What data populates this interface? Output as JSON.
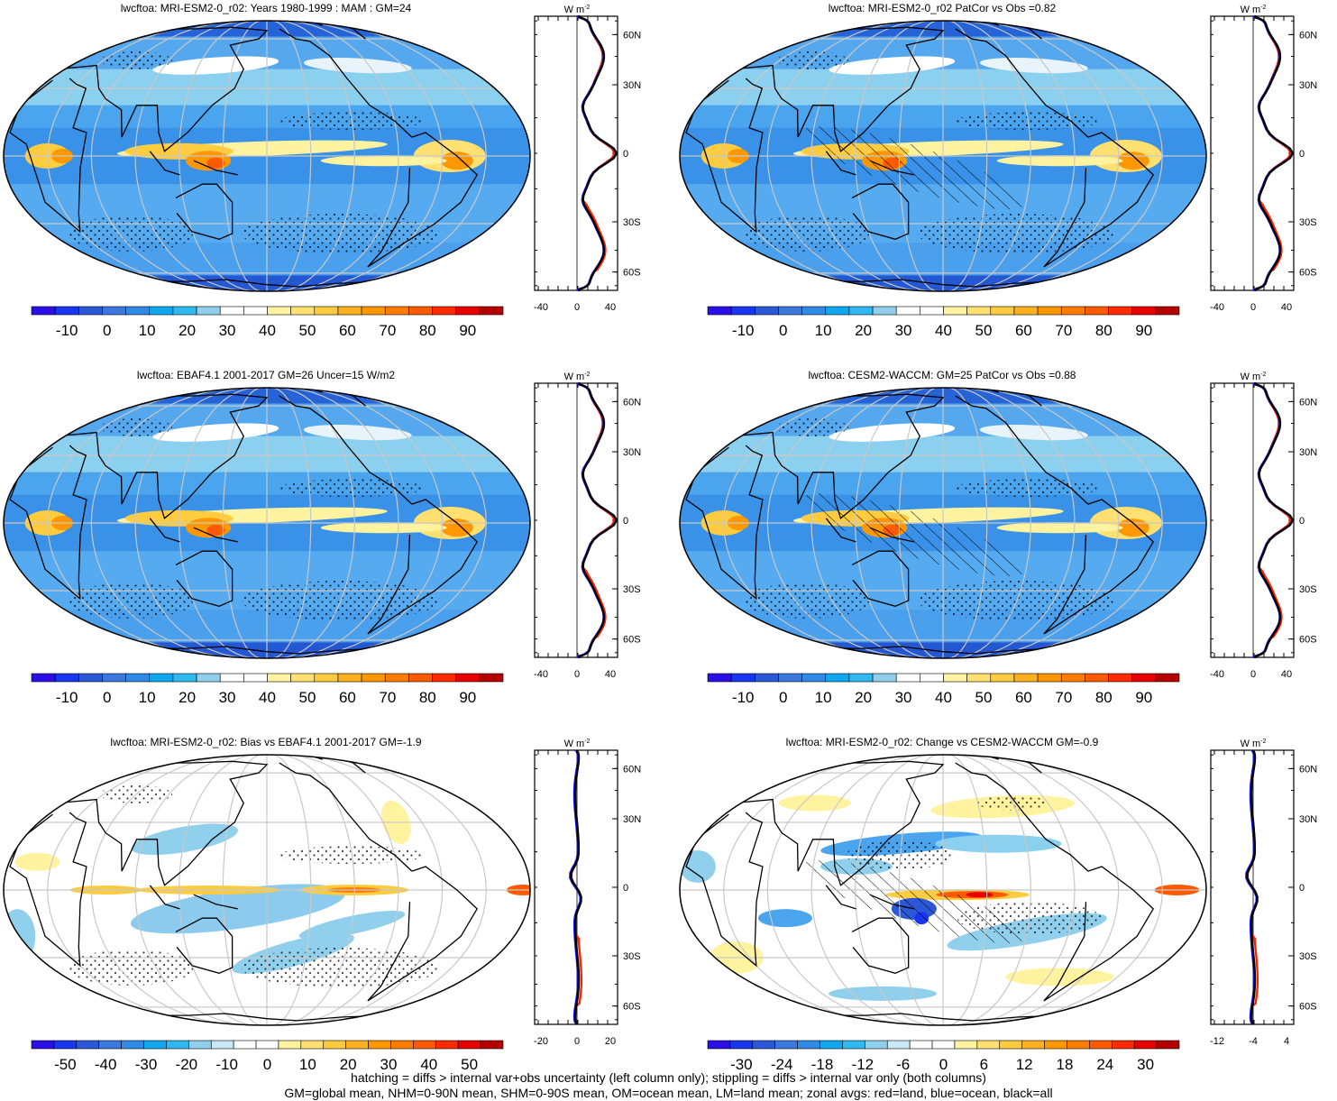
{
  "panels": [
    {
      "title": "lwcftoa: MRI-ESM2-0_r02: Years 1980-1999 : MAM : GM=24",
      "kind": "mean",
      "colorbar_labels": [
        "-10",
        "0",
        "10",
        "20",
        "30",
        "40",
        "50",
        "60",
        "70",
        "80",
        "90"
      ],
      "colorbar_colors": [
        "#2a10e6",
        "#1835f0",
        "#2b58d8",
        "#3a78e0",
        "#2f8ae8",
        "#0fa8f0",
        "#30b8f0",
        "#90d0ec",
        "#ffffff",
        "#ffffff",
        "#fff3a0",
        "#ffe070",
        "#ffcc40",
        "#ffb020",
        "#ff9800",
        "#ff7c00",
        "#ff5a00",
        "#ff2a00",
        "#e60000",
        "#b40000"
      ],
      "zonal_xticks": [
        "-40",
        "0",
        "40"
      ],
      "zonal_ylabels": [
        "60N",
        "30N",
        "0",
        "30S",
        "60S"
      ],
      "zonal_unit": "W m",
      "zonal_unit_exp": "-2"
    },
    {
      "title": "lwcftoa: MRI-ESM2-0_r02 PatCor vs Obs =0.82",
      "kind": "mean",
      "colorbar_labels": [
        "-10",
        "0",
        "10",
        "20",
        "30",
        "40",
        "50",
        "60",
        "70",
        "80",
        "90"
      ],
      "colorbar_colors": [
        "#2a10e6",
        "#1835f0",
        "#2b58d8",
        "#3a78e0",
        "#2f8ae8",
        "#0fa8f0",
        "#30b8f0",
        "#90d0ec",
        "#ffffff",
        "#ffffff",
        "#fff3a0",
        "#ffe070",
        "#ffcc40",
        "#ffb020",
        "#ff9800",
        "#ff7c00",
        "#ff5a00",
        "#ff2a00",
        "#e60000",
        "#b40000"
      ],
      "zonal_xticks": [
        "-40",
        "0",
        "40"
      ],
      "zonal_ylabels": [
        "60N",
        "30N",
        "0",
        "30S",
        "60S"
      ],
      "zonal_unit": "W m",
      "zonal_unit_exp": "-2"
    },
    {
      "title": "lwcftoa: EBAF4.1 2001-2017 GM=26 Uncer=15 W/m2",
      "kind": "mean",
      "colorbar_labels": [
        "-10",
        "0",
        "10",
        "20",
        "30",
        "40",
        "50",
        "60",
        "70",
        "80",
        "90"
      ],
      "colorbar_colors": [
        "#2a10e6",
        "#1835f0",
        "#2b58d8",
        "#3a78e0",
        "#2f8ae8",
        "#0fa8f0",
        "#30b8f0",
        "#90d0ec",
        "#ffffff",
        "#ffffff",
        "#fff3a0",
        "#ffe070",
        "#ffcc40",
        "#ffb020",
        "#ff9800",
        "#ff7c00",
        "#ff5a00",
        "#ff2a00",
        "#e60000",
        "#b40000"
      ],
      "zonal_xticks": [
        "-40",
        "0",
        "40"
      ],
      "zonal_ylabels": [
        "60N",
        "30N",
        "0",
        "30S",
        "60S"
      ],
      "zonal_unit": "W m",
      "zonal_unit_exp": "-2"
    },
    {
      "title": "lwcftoa: CESM2-WACCM: GM=25 PatCor vs Obs =0.88",
      "kind": "mean",
      "colorbar_labels": [
        "-10",
        "0",
        "10",
        "20",
        "30",
        "40",
        "50",
        "60",
        "70",
        "80",
        "90"
      ],
      "colorbar_colors": [
        "#2a10e6",
        "#1835f0",
        "#2b58d8",
        "#3a78e0",
        "#2f8ae8",
        "#0fa8f0",
        "#30b8f0",
        "#90d0ec",
        "#ffffff",
        "#ffffff",
        "#fff3a0",
        "#ffe070",
        "#ffcc40",
        "#ffb020",
        "#ff9800",
        "#ff7c00",
        "#ff5a00",
        "#ff2a00",
        "#e60000",
        "#b40000"
      ],
      "zonal_xticks": [
        "-40",
        "0",
        "40"
      ],
      "zonal_ylabels": [
        "60N",
        "30N",
        "0",
        "30S",
        "60S"
      ],
      "zonal_unit": "W m",
      "zonal_unit_exp": "-2"
    },
    {
      "title": "lwcftoa: MRI-ESM2-0_r02: Bias vs EBAF4.1 2001-2017 GM=-1.9",
      "kind": "bias",
      "colorbar_labels": [
        "-50",
        "-40",
        "-30",
        "-20",
        "-10",
        "0",
        "10",
        "20",
        "30",
        "40",
        "50"
      ],
      "colorbar_colors": [
        "#2a10e6",
        "#1835f0",
        "#2b58d8",
        "#3a78e0",
        "#2f8ae8",
        "#0fa8f0",
        "#30b8f0",
        "#90d0ec",
        "#c8e8f8",
        "#ffffff",
        "#ffffff",
        "#fff3a0",
        "#ffe070",
        "#ffcc40",
        "#ffb020",
        "#ff9800",
        "#ff7c00",
        "#ff5a00",
        "#ff2a00",
        "#e60000",
        "#b40000"
      ],
      "zonal_xticks": [
        "-20",
        "0",
        "20"
      ],
      "zonal_ylabels": [
        "60N",
        "30N",
        "0",
        "30S",
        "60S"
      ],
      "zonal_unit": "W m",
      "zonal_unit_exp": "-2"
    },
    {
      "title": "lwcftoa: MRI-ESM2-0_r02: Change vs CESM2-WACCM GM=-0.9",
      "kind": "change",
      "colorbar_labels": [
        "-30",
        "-24",
        "-18",
        "-12",
        "-6",
        "0",
        "6",
        "12",
        "18",
        "24",
        "30"
      ],
      "colorbar_colors": [
        "#2a10e6",
        "#1835f0",
        "#2b58d8",
        "#3a78e0",
        "#2f8ae8",
        "#0fa8f0",
        "#30b8f0",
        "#90d0ec",
        "#c8e8f8",
        "#ffffff",
        "#ffffff",
        "#fff3a0",
        "#ffe070",
        "#ffcc40",
        "#ffb020",
        "#ff9800",
        "#ff7c00",
        "#ff5a00",
        "#ff2a00",
        "#e60000",
        "#b40000"
      ],
      "zonal_xticks": [
        "-12",
        "-4",
        "4"
      ],
      "zonal_ylabels": [
        "60N",
        "30N",
        "0",
        "30S",
        "60S"
      ],
      "zonal_unit": "W m",
      "zonal_unit_exp": "-2"
    }
  ],
  "footer": {
    "line1": "hatching = diffs > internal var+obs uncertainty (left column only); stippling = diffs > internal var only (both columns)",
    "line2": "GM=global mean, NHM=0-90N mean, SHM=0-90S mean, OM=ocean mean, LM=land mean; zonal avgs: red=land, blue=ocean, black=all"
  },
  "colors": {
    "land_line": "#ff2200",
    "ocean_line": "#1a1aee",
    "all_line": "#000000"
  }
}
